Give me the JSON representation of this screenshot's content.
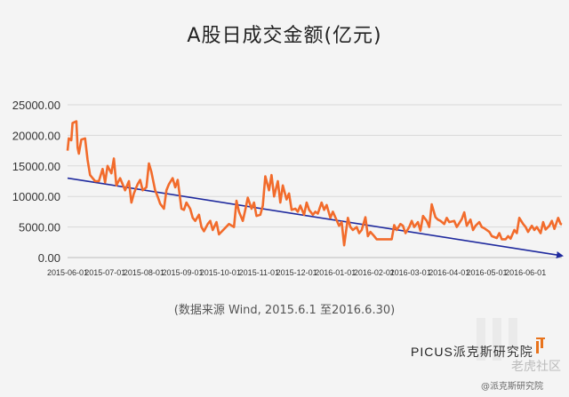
{
  "chart_data": {
    "type": "line",
    "title": "A股日成交金额(亿元)",
    "xlabel": "",
    "ylabel": "",
    "ylim": [
      0,
      25000
    ],
    "yticks": [
      "0.00",
      "5000.00",
      "10000.00",
      "15000.00",
      "20000.00",
      "25000.00"
    ],
    "xticks": [
      {
        "label": "2015-06-01",
        "date": "2015-06-01"
      },
      {
        "label": "2015-07-01",
        "date": "2015-07-01"
      },
      {
        "label": "2015-08-01",
        "date": "2015-08-01"
      },
      {
        "label": "2015-09-01",
        "date": "2015-09-01"
      },
      {
        "label": "2015-10-01",
        "date": "2015-10-01"
      },
      {
        "label": "2015-11-01",
        "date": "2015-11-01"
      },
      {
        "label": "2015-12-01",
        "date": "2015-12-01"
      },
      {
        "label": "2016-01-01",
        "date": "2016-01-01"
      },
      {
        "label": "2016-02-01",
        "date": "2016-02-01"
      },
      {
        "label": "2016-03-01",
        "date": "2016-03-01"
      },
      {
        "label": "2016-04-01",
        "date": "2016-04-01"
      },
      {
        "label": "2016-05-01",
        "date": "2016-05-01"
      },
      {
        "label": "2016-06-01",
        "date": "2016-06-01"
      }
    ],
    "grid": "horizontal",
    "series": [
      {
        "name": "",
        "color": "#f26b2b",
        "points": [
          [
            "2015-06-01",
            17500
          ],
          [
            "2015-06-02",
            19500
          ],
          [
            "2015-06-04",
            19200
          ],
          [
            "2015-06-05",
            22000
          ],
          [
            "2015-06-08",
            22300
          ],
          [
            "2015-06-09",
            18000
          ],
          [
            "2015-06-10",
            17000
          ],
          [
            "2015-06-12",
            19300
          ],
          [
            "2015-06-15",
            19500
          ],
          [
            "2015-06-17",
            16000
          ],
          [
            "2015-06-19",
            13500
          ],
          [
            "2015-06-23",
            12500
          ],
          [
            "2015-06-26",
            12500
          ],
          [
            "2015-06-29",
            14500
          ],
          [
            "2015-07-01",
            12300
          ],
          [
            "2015-07-03",
            15000
          ],
          [
            "2015-07-06",
            13800
          ],
          [
            "2015-07-08",
            16200
          ],
          [
            "2015-07-10",
            11800
          ],
          [
            "2015-07-13",
            13000
          ],
          [
            "2015-07-15",
            12000
          ],
          [
            "2015-07-17",
            11000
          ],
          [
            "2015-07-20",
            12500
          ],
          [
            "2015-07-22",
            9000
          ],
          [
            "2015-07-24",
            10500
          ],
          [
            "2015-07-27",
            12000
          ],
          [
            "2015-07-29",
            12700
          ],
          [
            "2015-07-31",
            11000
          ],
          [
            "2015-08-03",
            11500
          ],
          [
            "2015-08-05",
            15400
          ],
          [
            "2015-08-07",
            14000
          ],
          [
            "2015-08-10",
            11000
          ],
          [
            "2015-08-12",
            10000
          ],
          [
            "2015-08-14",
            8800
          ],
          [
            "2015-08-17",
            8000
          ],
          [
            "2015-08-19",
            11000
          ],
          [
            "2015-08-21",
            12000
          ],
          [
            "2015-08-24",
            13000
          ],
          [
            "2015-08-26",
            11500
          ],
          [
            "2015-08-28",
            12700
          ],
          [
            "2015-08-31",
            8000
          ],
          [
            "2015-09-02",
            7800
          ],
          [
            "2015-09-04",
            9000
          ],
          [
            "2015-09-07",
            8000
          ],
          [
            "2015-09-09",
            6500
          ],
          [
            "2015-09-11",
            6000
          ],
          [
            "2015-09-14",
            7000
          ],
          [
            "2015-09-16",
            5000
          ],
          [
            "2015-09-18",
            4300
          ],
          [
            "2015-09-21",
            5500
          ],
          [
            "2015-09-23",
            6000
          ],
          [
            "2015-09-25",
            4500
          ],
          [
            "2015-09-28",
            5800
          ],
          [
            "2015-09-30",
            3800
          ],
          [
            "2015-10-08",
            5500
          ],
          [
            "2015-10-12",
            5000
          ],
          [
            "2015-10-14",
            9300
          ],
          [
            "2015-10-16",
            7500
          ],
          [
            "2015-10-19",
            6000
          ],
          [
            "2015-10-21",
            7800
          ],
          [
            "2015-10-23",
            9800
          ],
          [
            "2015-10-26",
            8000
          ],
          [
            "2015-10-28",
            9000
          ],
          [
            "2015-10-30",
            6800
          ],
          [
            "2015-11-02",
            7000
          ],
          [
            "2015-11-04",
            8500
          ],
          [
            "2015-11-06",
            13300
          ],
          [
            "2015-11-09",
            11000
          ],
          [
            "2015-11-11",
            13500
          ],
          [
            "2015-11-13",
            10000
          ],
          [
            "2015-11-16",
            12500
          ],
          [
            "2015-11-18",
            9000
          ],
          [
            "2015-11-20",
            11800
          ],
          [
            "2015-11-23",
            9500
          ],
          [
            "2015-11-25",
            10500
          ],
          [
            "2015-11-27",
            7800
          ],
          [
            "2015-11-30",
            8000
          ],
          [
            "2015-12-02",
            7500
          ],
          [
            "2015-12-04",
            8500
          ],
          [
            "2015-12-07",
            7000
          ],
          [
            "2015-12-09",
            9000
          ],
          [
            "2015-12-11",
            7800
          ],
          [
            "2015-12-14",
            7000
          ],
          [
            "2015-12-16",
            7500
          ],
          [
            "2015-12-18",
            7200
          ],
          [
            "2015-12-21",
            9000
          ],
          [
            "2015-12-23",
            7800
          ],
          [
            "2015-12-25",
            8600
          ],
          [
            "2015-12-28",
            6500
          ],
          [
            "2015-12-30",
            7500
          ],
          [
            "2016-01-04",
            5200
          ],
          [
            "2016-01-06",
            5800
          ],
          [
            "2016-01-08",
            2000
          ],
          [
            "2016-01-11",
            6500
          ],
          [
            "2016-01-13",
            5000
          ],
          [
            "2016-01-15",
            4500
          ],
          [
            "2016-01-18",
            5000
          ],
          [
            "2016-01-20",
            4000
          ],
          [
            "2016-01-22",
            4500
          ],
          [
            "2016-01-25",
            6600
          ],
          [
            "2016-01-27",
            3500
          ],
          [
            "2016-01-29",
            4200
          ],
          [
            "2016-02-01",
            3500
          ],
          [
            "2016-02-03",
            3000
          ],
          [
            "2016-02-05",
            3000
          ],
          [
            "2016-02-15",
            3000
          ],
          [
            "2016-02-17",
            5300
          ],
          [
            "2016-02-19",
            4500
          ],
          [
            "2016-02-22",
            5500
          ],
          [
            "2016-02-24",
            5200
          ],
          [
            "2016-02-26",
            4000
          ],
          [
            "2016-02-29",
            5000
          ],
          [
            "2016-03-02",
            6000
          ],
          [
            "2016-03-04",
            5000
          ],
          [
            "2016-03-07",
            5800
          ],
          [
            "2016-03-09",
            4400
          ],
          [
            "2016-03-11",
            6800
          ],
          [
            "2016-03-14",
            6000
          ],
          [
            "2016-03-16",
            5000
          ],
          [
            "2016-03-18",
            8700
          ],
          [
            "2016-03-21",
            6600
          ],
          [
            "2016-03-23",
            6200
          ],
          [
            "2016-03-25",
            6000
          ],
          [
            "2016-03-28",
            5500
          ],
          [
            "2016-03-30",
            6500
          ],
          [
            "2016-04-01",
            5800
          ],
          [
            "2016-04-05",
            6000
          ],
          [
            "2016-04-07",
            5000
          ],
          [
            "2016-04-11",
            6300
          ],
          [
            "2016-04-13",
            7400
          ],
          [
            "2016-04-15",
            5200
          ],
          [
            "2016-04-18",
            6200
          ],
          [
            "2016-04-20",
            4500
          ],
          [
            "2016-04-22",
            5200
          ],
          [
            "2016-04-25",
            5800
          ],
          [
            "2016-04-27",
            5000
          ],
          [
            "2016-04-29",
            4800
          ],
          [
            "2016-05-03",
            4200
          ],
          [
            "2016-05-05",
            3500
          ],
          [
            "2016-05-09",
            3200
          ],
          [
            "2016-05-11",
            4000
          ],
          [
            "2016-05-13",
            3000
          ],
          [
            "2016-05-16",
            3000
          ],
          [
            "2016-05-18",
            3500
          ],
          [
            "2016-05-20",
            3100
          ],
          [
            "2016-05-23",
            4500
          ],
          [
            "2016-05-25",
            4000
          ],
          [
            "2016-05-27",
            6500
          ],
          [
            "2016-05-30",
            5500
          ],
          [
            "2016-06-01",
            5000
          ],
          [
            "2016-06-03",
            4200
          ],
          [
            "2016-06-06",
            5200
          ],
          [
            "2016-06-08",
            4500
          ],
          [
            "2016-06-10",
            5000
          ],
          [
            "2016-06-13",
            4000
          ],
          [
            "2016-06-15",
            5800
          ],
          [
            "2016-06-17",
            4600
          ],
          [
            "2016-06-20",
            5200
          ],
          [
            "2016-06-22",
            6000
          ],
          [
            "2016-06-24",
            4700
          ],
          [
            "2016-06-27",
            6500
          ],
          [
            "2016-06-29",
            5500
          ],
          [
            "2016-06-30",
            5400
          ]
        ]
      }
    ],
    "trend_lines": [
      {
        "color": "#1f2a9e",
        "start": [
          "2015-06-01",
          13000
        ],
        "end": [
          "2016-06-30",
          300
        ]
      }
    ]
  },
  "source_note": "(数据来源 Wind, 2015.6.1 至2016.6.30)",
  "brand": {
    "latin": "PICUS",
    "cjk": "派克斯研究院"
  },
  "watermark": {
    "forum": "老虎社区",
    "credit": "@派克斯研究院"
  },
  "colors": {
    "series": "#f26b2b",
    "trend": "#1f2a9e",
    "grid": "#d9d9d9"
  }
}
